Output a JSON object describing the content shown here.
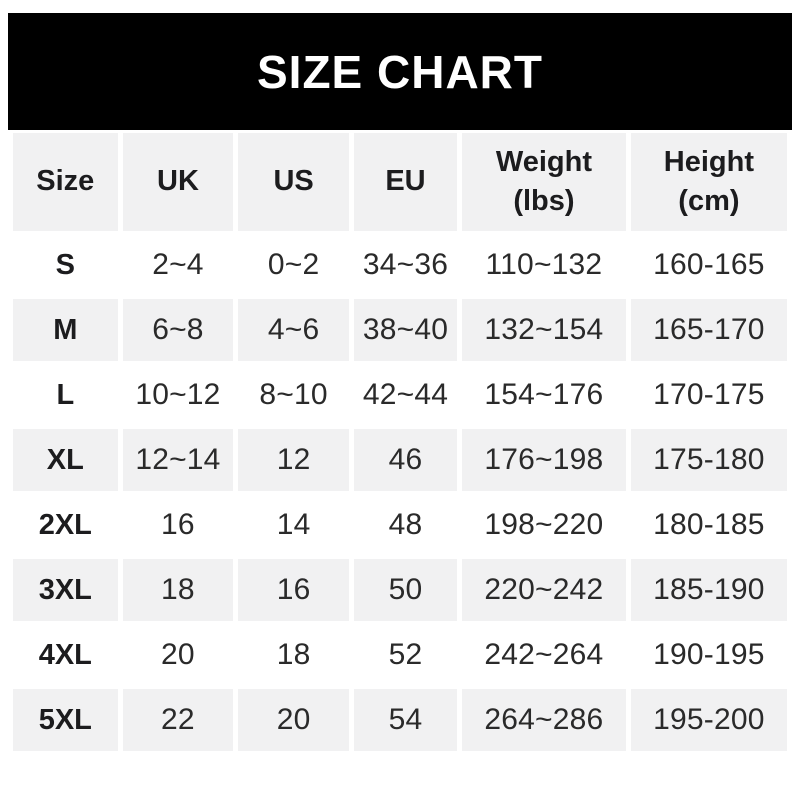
{
  "title": "SIZE CHART",
  "colors": {
    "banner_bg": "#000000",
    "banner_text": "#ffffff",
    "row_alt_bg": "#f1f1f2",
    "text": "#1c1c1e"
  },
  "table": {
    "headers_display": [
      "Size",
      "UK",
      "US",
      "EU",
      "Weight\n(lbs)",
      "Height\n(cm)"
    ]
  },
  "chart_data": {
    "type": "table",
    "title": "SIZE CHART",
    "columns": [
      "Size",
      "UK",
      "US",
      "EU",
      "Weight (lbs)",
      "Height (cm)"
    ],
    "rows": [
      {
        "size": "S",
        "uk": "2~4",
        "us": "0~2",
        "eu": "34~36",
        "weight_lbs": "110~132",
        "height_cm": "160-165"
      },
      {
        "size": "M",
        "uk": "6~8",
        "us": "4~6",
        "eu": "38~40",
        "weight_lbs": "132~154",
        "height_cm": "165-170"
      },
      {
        "size": "L",
        "uk": "10~12",
        "us": "8~10",
        "eu": "42~44",
        "weight_lbs": "154~176",
        "height_cm": "170-175"
      },
      {
        "size": "XL",
        "uk": "12~14",
        "us": "12",
        "eu": "46",
        "weight_lbs": "176~198",
        "height_cm": "175-180"
      },
      {
        "size": "2XL",
        "uk": "16",
        "us": "14",
        "eu": "48",
        "weight_lbs": "198~220",
        "height_cm": "180-185"
      },
      {
        "size": "3XL",
        "uk": "18",
        "us": "16",
        "eu": "50",
        "weight_lbs": "220~242",
        "height_cm": "185-190"
      },
      {
        "size": "4XL",
        "uk": "20",
        "us": "18",
        "eu": "52",
        "weight_lbs": "242~264",
        "height_cm": "190-195"
      },
      {
        "size": "5XL",
        "uk": "22",
        "us": "20",
        "eu": "54",
        "weight_lbs": "264~286",
        "height_cm": "195-200"
      }
    ]
  }
}
